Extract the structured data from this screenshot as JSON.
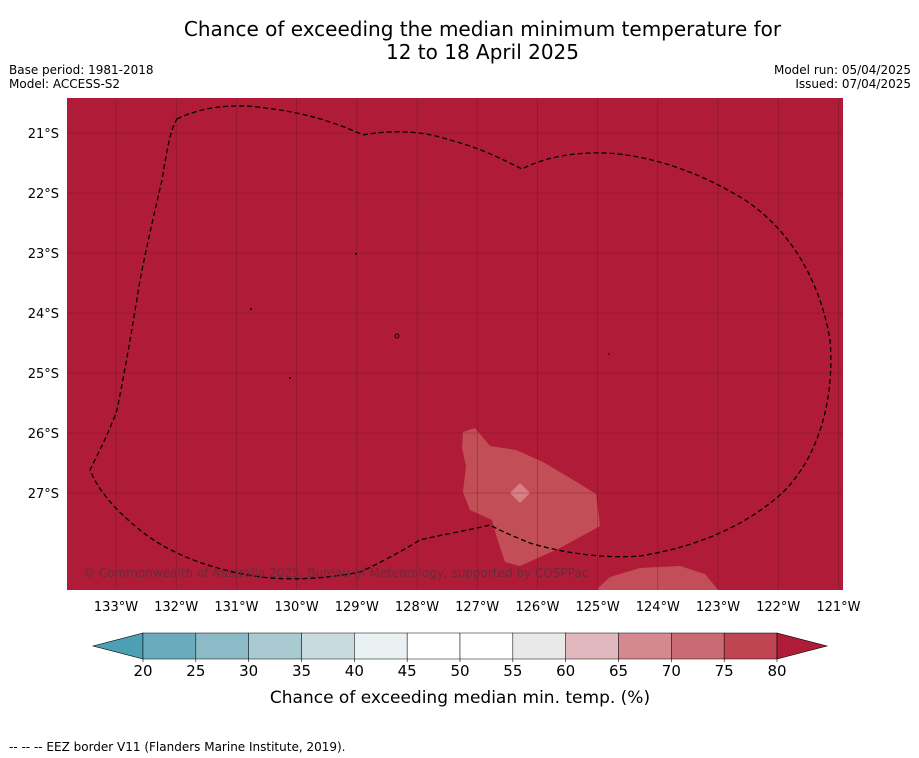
{
  "title_line1": "Chance of exceeding the median minimum temperature for",
  "title_line2": "12 to 18 April 2025",
  "base_period": "Base period: 1981-2018",
  "model": "Model: ACCESS-S2",
  "model_run": "Model run: 05/04/2025",
  "issued": "Issued: 07/04/2025",
  "copyright": "© Commonwealth of Australia 2025, Bureau of Meteorology, supported by COSPPac",
  "eez_note": "--  --  -- EEZ border V11 (Flanders Marine Institute, 2019).",
  "map": {
    "lon_labels": [
      "133°W",
      "132°W",
      "131°W",
      "130°W",
      "129°W",
      "128°W",
      "127°W",
      "126°W",
      "125°W",
      "124°W",
      "123°W",
      "122°W",
      "121°W"
    ],
    "lat_labels": [
      "21°S",
      "22°S",
      "23°S",
      "24°S",
      "25°S",
      "26°S",
      "27°S"
    ],
    "background_category": "75-80+",
    "background_color": "#b01c38",
    "patch_color": "#c24f58",
    "patch_inner_color": "#d97f86"
  },
  "colorbar": {
    "label": "Chance of exceeding median min. temp. (%)",
    "ticks": [
      "20",
      "25",
      "30",
      "35",
      "40",
      "45",
      "50",
      "55",
      "60",
      "65",
      "70",
      "75",
      "80"
    ],
    "colors": [
      "#6aacbd",
      "#8cbac6",
      "#a9cad0",
      "#c8dcdf",
      "#eaf1f2",
      "#ffffff",
      "#ffffff",
      "#e9e9e9",
      "#e1b8bd",
      "#d6888f",
      "#c96a72",
      "#bf4553"
    ],
    "under_color": "#4da0b3",
    "over_color": "#b01c38"
  }
}
